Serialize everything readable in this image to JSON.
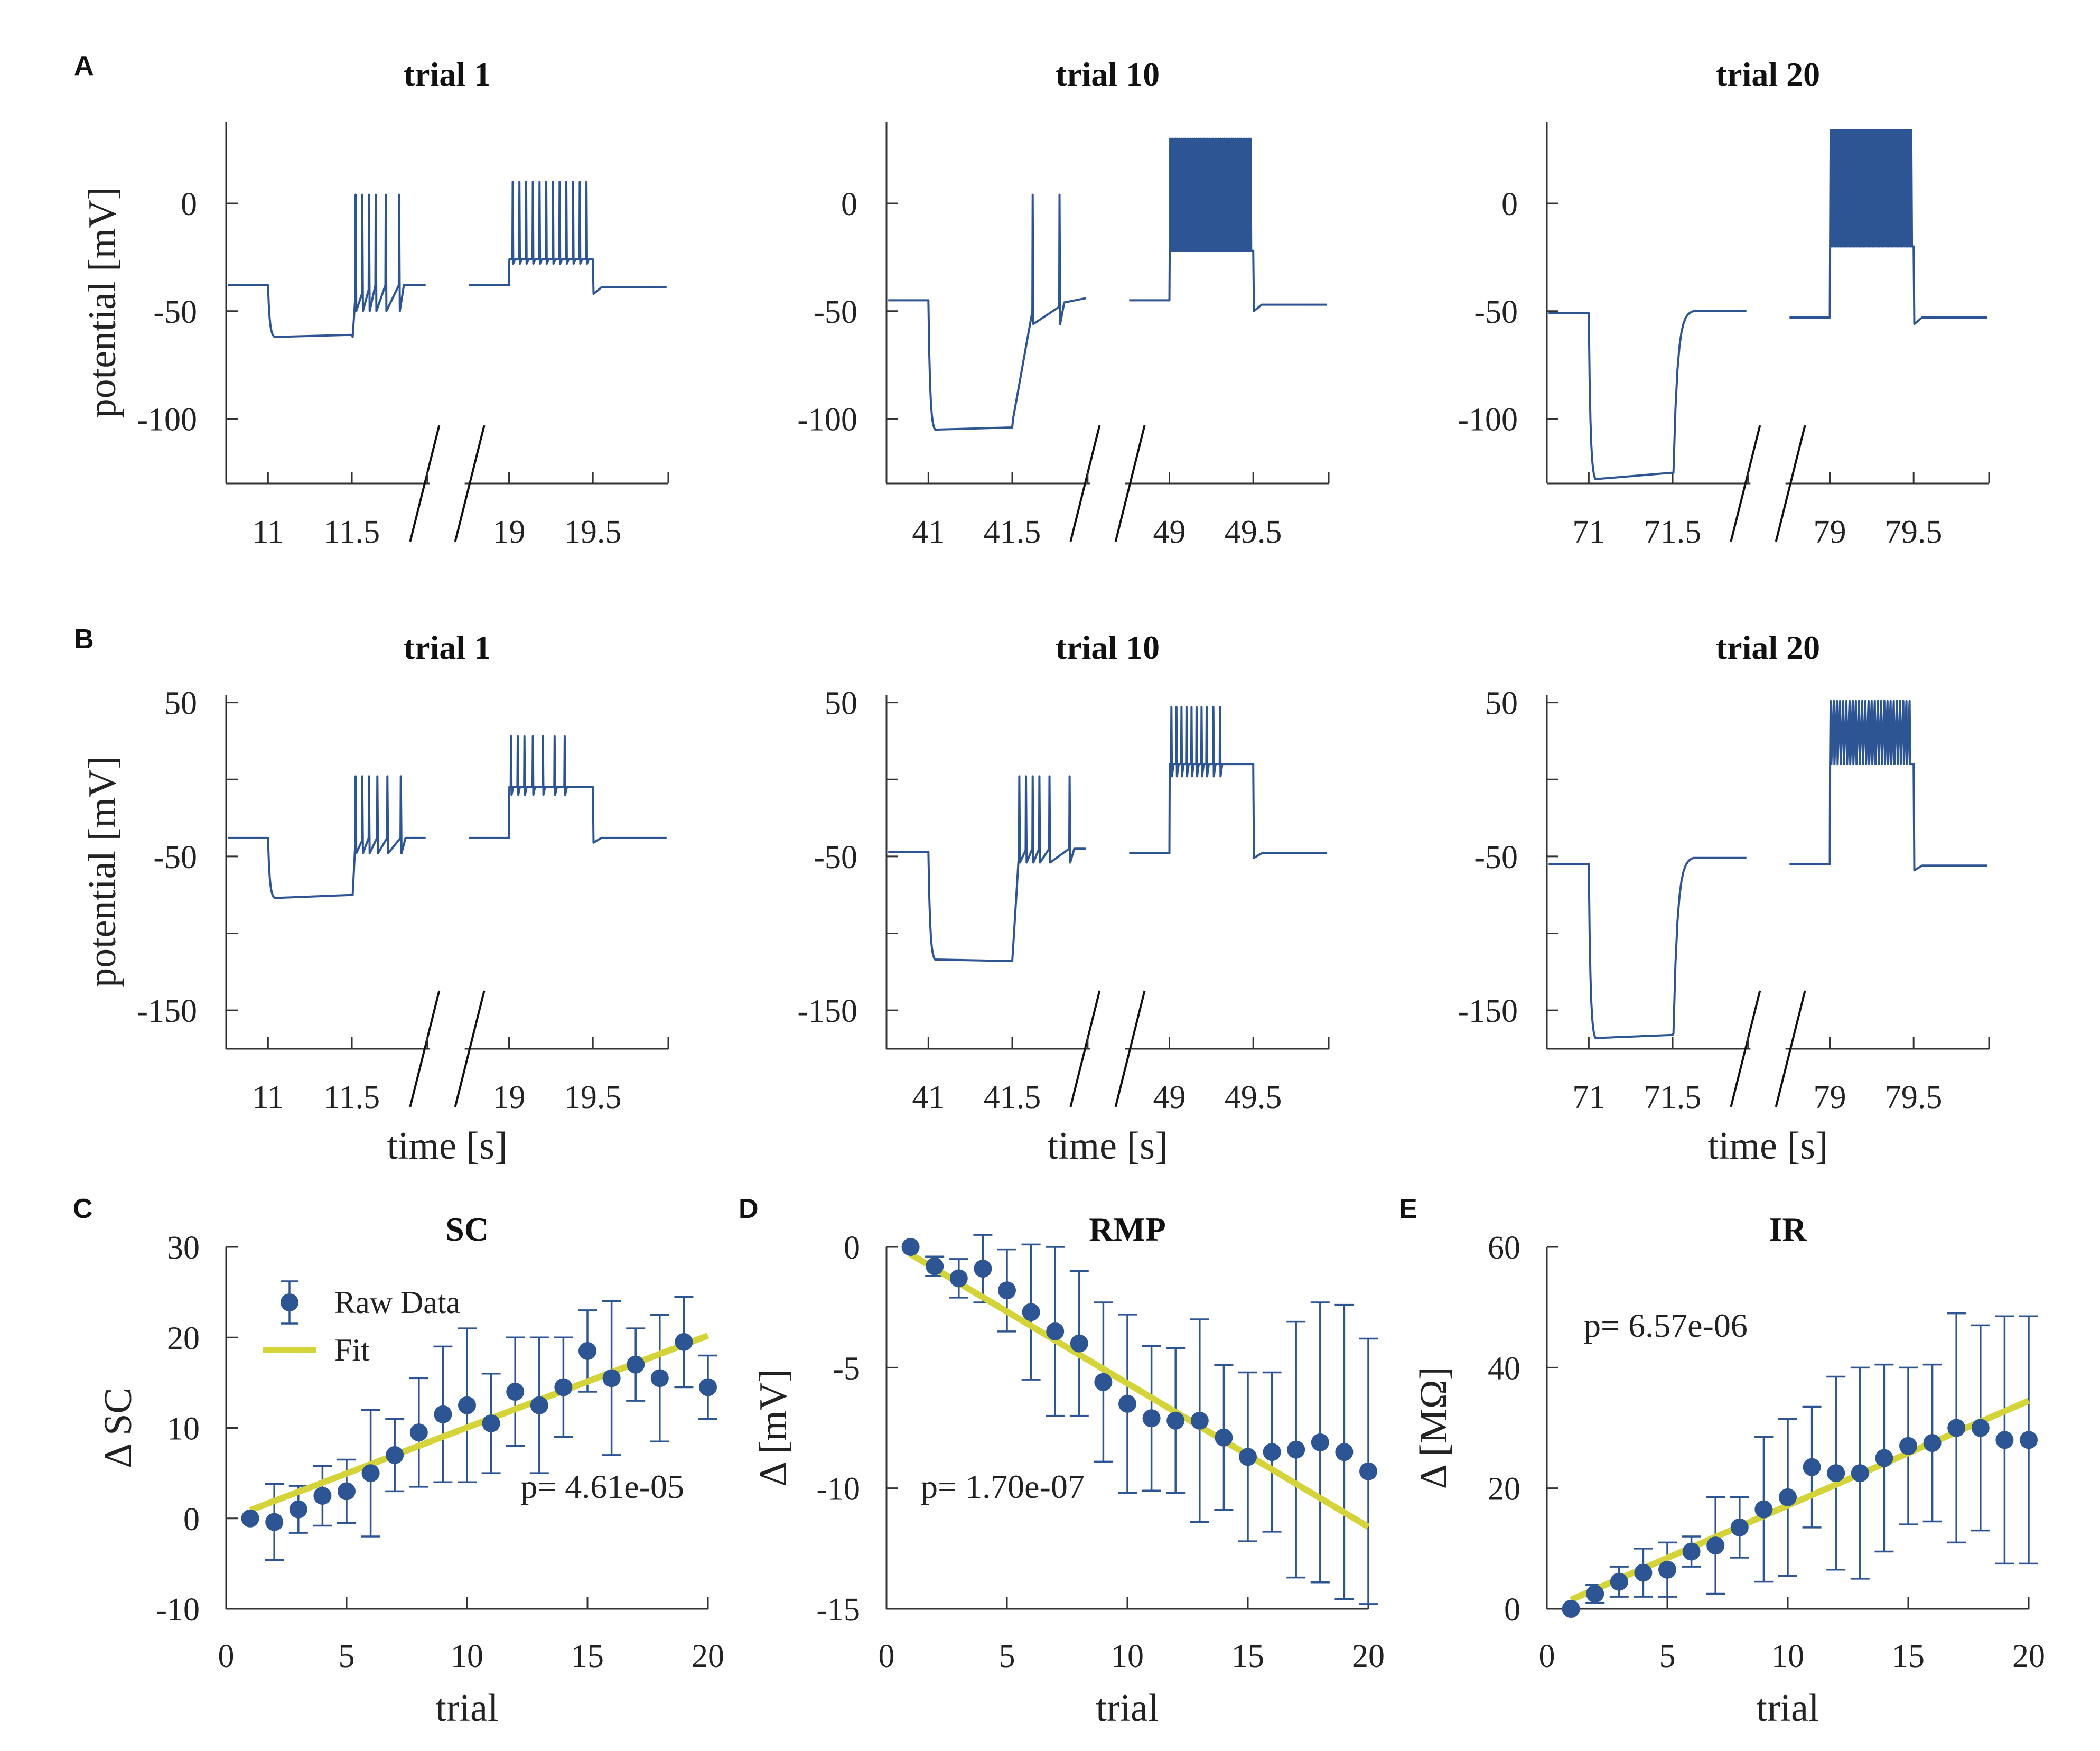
{
  "colors": {
    "trace": "#2e5593",
    "fit": "#d4d43a",
    "axis": "#333333"
  },
  "chart_data": [
    {
      "type": "line",
      "panel": "A",
      "title": "trial 1",
      "ylabel": "potential [mV]",
      "xlabel": "",
      "ylim": [
        -130,
        38
      ],
      "yticks": [
        0,
        -50,
        -100
      ],
      "yticklabels": [
        "0",
        "-50",
        "-100"
      ],
      "segments": [
        {
          "x_start": 10.75,
          "x_end": 11.95,
          "xticks": [
            11,
            11.5
          ],
          "xticklabels": [
            "11",
            "11.5"
          ],
          "baseline": -38,
          "hyper_start": 11.0,
          "hyper_end": 11.5,
          "hyper_level": -62,
          "hyper_tail": -61,
          "post_level": -38,
          "spike_times": [
            11.52,
            11.56,
            11.6,
            11.64,
            11.7,
            11.78
          ],
          "spike_peak": 4,
          "spike_trough": -44,
          "sag_start": -62,
          "sag_end": -38
        },
        {
          "x_start": 18.75,
          "x_end": 19.95,
          "xticks": [
            19,
            19.5
          ],
          "xticklabels": [
            "19",
            "19.5"
          ],
          "baseline": -38,
          "step_start": 19.0,
          "step_end": 19.5,
          "step_level": -26,
          "post_level": -39,
          "spike_times": [
            19.02,
            19.06,
            19.1,
            19.14,
            19.18,
            19.22,
            19.26,
            19.3,
            19.34,
            19.38,
            19.42,
            19.46
          ],
          "spike_peak": 10,
          "spike_trough": -28
        }
      ]
    },
    {
      "type": "line",
      "panel": "",
      "title": "trial 10",
      "ylabel": "",
      "xlabel": "",
      "ylim": [
        -130,
        38
      ],
      "yticks": [
        0,
        -50,
        -100
      ],
      "yticklabels": [
        "0",
        "-50",
        "-100"
      ],
      "segments": [
        {
          "x_start": 40.75,
          "x_end": 41.95,
          "xticks": [
            41,
            41.5
          ],
          "xticklabels": [
            "41",
            "41.5"
          ],
          "baseline": -45,
          "hyper_start": 41.0,
          "hyper_end": 41.5,
          "hyper_level": -105,
          "hyper_tail": -104,
          "post_level": -44,
          "spike_times": [
            41.62,
            41.78
          ],
          "spike_peak": 4,
          "spike_trough": -50,
          "sag_start": -100,
          "sag_end": -44
        },
        {
          "x_start": 48.75,
          "x_end": 49.95,
          "xticks": [
            49,
            49.5
          ],
          "xticklabels": [
            "49",
            "49.5"
          ],
          "baseline": -45,
          "step_start": 49.0,
          "step_end": 49.5,
          "step_level": -20,
          "post_level": -47,
          "dense": true,
          "dense_top": 30,
          "dense_bottom": -22,
          "dense_count": 44
        }
      ]
    },
    {
      "type": "line",
      "panel": "",
      "title": "trial 20",
      "ylabel": "",
      "xlabel": "",
      "ylim": [
        -130,
        38
      ],
      "yticks": [
        0,
        -50,
        -100
      ],
      "yticklabels": [
        "0",
        "-50",
        "-100"
      ],
      "segments": [
        {
          "x_start": 70.75,
          "x_end": 71.95,
          "xticks": [
            71,
            71.5
          ],
          "xticklabels": [
            "71",
            "71.5"
          ],
          "baseline": -51,
          "hyper_start": 71.0,
          "hyper_end": 71.5,
          "hyper_level": -128,
          "hyper_tail": -125,
          "post_level": -50,
          "spike_times": [],
          "spike_peak": 0,
          "spike_trough": 0,
          "sag_start": -125,
          "sag_end": -50,
          "slow_recovery": true
        },
        {
          "x_start": 78.75,
          "x_end": 79.95,
          "xticks": [
            79,
            79.5
          ],
          "xticklabels": [
            "79",
            "79.5"
          ],
          "baseline": -53,
          "step_start": 79.0,
          "step_end": 79.5,
          "step_level": -20,
          "post_level": -53,
          "dense": true,
          "dense_top": 34,
          "dense_bottom": -20,
          "dense_count": 56
        }
      ]
    },
    {
      "type": "line",
      "panel": "B",
      "title": "trial 1",
      "ylabel": "potential [mV]",
      "xlabel": "time [s]",
      "ylim": [
        -175,
        55
      ],
      "yticks": [
        50,
        0,
        -50,
        -100,
        -150
      ],
      "yticklabels": [
        "50",
        "",
        "-50",
        "",
        "-150"
      ],
      "segments": [
        {
          "x_start": 10.75,
          "x_end": 11.95,
          "xticks": [
            11,
            11.5
          ],
          "xticklabels": [
            "11",
            "11.5"
          ],
          "baseline": -38,
          "hyper_start": 11.0,
          "hyper_end": 11.5,
          "hyper_level": -77,
          "hyper_tail": -75,
          "post_level": -38,
          "spike_times": [
            11.52,
            11.56,
            11.6,
            11.65,
            11.71,
            11.79
          ],
          "spike_peak": 2,
          "spike_trough": -42,
          "sag_start": -75,
          "sag_end": -38
        },
        {
          "x_start": 18.75,
          "x_end": 19.95,
          "xticks": [
            19,
            19.5
          ],
          "xticklabels": [
            "19",
            "19.5"
          ],
          "baseline": -38,
          "step_start": 19.0,
          "step_end": 19.5,
          "step_level": -5,
          "post_level": -38,
          "spike_times": [
            19.01,
            19.05,
            19.09,
            19.14,
            19.2,
            19.27,
            19.33
          ],
          "spike_peak": 28,
          "spike_trough": -10
        }
      ]
    },
    {
      "type": "line",
      "panel": "",
      "title": "trial 10",
      "ylabel": "",
      "xlabel": "time [s]",
      "ylim": [
        -175,
        55
      ],
      "yticks": [
        50,
        0,
        -50,
        -100,
        -150
      ],
      "yticklabels": [
        "50",
        "",
        "-50",
        "",
        "-150"
      ],
      "segments": [
        {
          "x_start": 40.75,
          "x_end": 41.95,
          "xticks": [
            41,
            41.5
          ],
          "xticklabels": [
            "41",
            "41.5"
          ],
          "baseline": -47,
          "hyper_start": 41.0,
          "hyper_end": 41.5,
          "hyper_level": -117,
          "hyper_tail": -118,
          "post_level": -45,
          "spike_times": [
            41.54,
            41.58,
            41.62,
            41.66,
            41.72,
            41.84
          ],
          "spike_peak": 2,
          "spike_trough": -48,
          "sag_start": -110,
          "sag_end": -45
        },
        {
          "x_start": 48.75,
          "x_end": 49.95,
          "xticks": [
            49,
            49.5
          ],
          "xticklabels": [
            "49",
            "49.5"
          ],
          "baseline": -48,
          "step_start": 49.0,
          "step_end": 49.5,
          "step_level": 10,
          "post_level": -48,
          "spike_times": [
            49.01,
            49.04,
            49.07,
            49.1,
            49.13,
            49.16,
            49.19,
            49.22,
            49.26,
            49.3
          ],
          "spike_peak": 47,
          "spike_trough": 2
        }
      ]
    },
    {
      "type": "line",
      "panel": "",
      "title": "trial 20",
      "ylabel": "",
      "xlabel": "time [s]",
      "ylim": [
        -175,
        55
      ],
      "yticks": [
        50,
        0,
        -50,
        -100,
        -150
      ],
      "yticklabels": [
        "50",
        "",
        "-50",
        "",
        "-150"
      ],
      "segments": [
        {
          "x_start": 70.75,
          "x_end": 71.95,
          "xticks": [
            71,
            71.5
          ],
          "xticklabels": [
            "71",
            "71.5"
          ],
          "baseline": -55,
          "hyper_start": 71.0,
          "hyper_end": 71.5,
          "hyper_level": -168,
          "hyper_tail": -166,
          "post_level": -51,
          "spike_times": [],
          "spike_peak": 0,
          "spike_trough": 0,
          "sag_start": -165,
          "sag_end": -51,
          "slow_recovery": true
        },
        {
          "x_start": 78.75,
          "x_end": 79.95,
          "xticks": [
            79,
            79.5
          ],
          "xticklabels": [
            "79",
            "79.5"
          ],
          "baseline": -55,
          "step_start": 79.0,
          "step_end": 79.5,
          "step_level": -5,
          "post_level": -56,
          "dense": true,
          "dense_top": 51,
          "dense_bottom": 10,
          "dense_count": 26
        }
      ]
    },
    {
      "type": "scatter",
      "panel": "C",
      "title": "SC",
      "xlabel": "trial",
      "ylabel": "Δ SC",
      "xlim": [
        0,
        20
      ],
      "ylim": [
        -10,
        30
      ],
      "xticks": [
        0,
        5,
        10,
        15,
        20
      ],
      "yticks": [
        -10,
        0,
        10,
        20,
        30
      ],
      "x": [
        1,
        2,
        3,
        4,
        5,
        6,
        7,
        8,
        9,
        10,
        11,
        12,
        13,
        14,
        15,
        16,
        17,
        18,
        19,
        20
      ],
      "y": [
        0,
        -0.4,
        1,
        2.5,
        3,
        5,
        7,
        9.5,
        11.5,
        12.5,
        10.5,
        14,
        12.5,
        14.5,
        18.5,
        15.5,
        17,
        15.5,
        19.5,
        14.5
      ],
      "err": [
        0,
        4.2,
        2.6,
        3.3,
        3.5,
        7,
        4,
        6,
        7.5,
        8.5,
        5.5,
        6,
        7.5,
        5.5,
        4.5,
        8.5,
        4,
        7,
        5,
        3.5
      ],
      "fit": {
        "x": [
          1,
          20
        ],
        "y": [
          0.9,
          20.2
        ]
      },
      "legend": [
        {
          "label": "Raw Data",
          "kind": "marker"
        },
        {
          "label": "Fit",
          "kind": "line"
        }
      ],
      "annotation": "p= 4.61e-05"
    },
    {
      "type": "scatter",
      "panel": "D",
      "title": "RMP",
      "xlabel": "trial",
      "ylabel": "Δ [mV]",
      "xlim": [
        0,
        20
      ],
      "ylim": [
        -15,
        0
      ],
      "xticks": [
        0,
        5,
        10,
        15,
        20
      ],
      "yticks": [
        -15,
        -10,
        -5,
        0
      ],
      "x": [
        1,
        2,
        3,
        4,
        5,
        6,
        7,
        8,
        9,
        10,
        11,
        12,
        13,
        14,
        15,
        16,
        17,
        18,
        19,
        20
      ],
      "y": [
        0,
        -0.8,
        -1.3,
        -0.9,
        -1.8,
        -2.7,
        -3.5,
        -4,
        -5.6,
        -6.5,
        -7.1,
        -7.2,
        -7.2,
        -7.9,
        -8.7,
        -8.5,
        -8.4,
        -8.1,
        -8.5,
        -9.3
      ],
      "err": [
        0,
        0.4,
        0.8,
        1.4,
        1.7,
        2.8,
        3.5,
        3.0,
        3.3,
        3.7,
        3.0,
        3.0,
        4.2,
        3.0,
        3.5,
        3.3,
        5.3,
        5.8,
        6.1,
        5.5
      ],
      "fit": {
        "x": [
          1,
          20
        ],
        "y": [
          -0.3,
          -11.6
        ]
      },
      "legend": [],
      "annotation": "p= 1.70e-07"
    },
    {
      "type": "scatter",
      "panel": "E",
      "title": "IR",
      "xlabel": "trial",
      "ylabel": "Δ [MΩ]",
      "xlim": [
        0,
        20
      ],
      "ylim": [
        0,
        60
      ],
      "xticks": [
        0,
        5,
        10,
        15,
        20
      ],
      "yticks": [
        0,
        20,
        40,
        60
      ],
      "x": [
        1,
        2,
        3,
        4,
        5,
        6,
        7,
        8,
        9,
        10,
        11,
        12,
        13,
        14,
        15,
        16,
        17,
        18,
        19,
        20
      ],
      "y": [
        0,
        2.5,
        4.5,
        6,
        6.5,
        9.5,
        10.5,
        13.5,
        16.5,
        18.5,
        23.5,
        22.5,
        22.5,
        25,
        27,
        27.5,
        30,
        30,
        28,
        28
      ],
      "err": [
        0,
        1.5,
        2.5,
        4,
        4.5,
        2.5,
        8,
        5,
        12,
        13,
        10,
        16,
        17.5,
        15.5,
        13,
        13,
        19,
        17,
        20.5,
        20.5
      ],
      "fit": {
        "x": [
          1,
          20
        ],
        "y": [
          1.5,
          34.5
        ]
      },
      "legend": [],
      "annotation": "p= 6.57e-06"
    }
  ]
}
